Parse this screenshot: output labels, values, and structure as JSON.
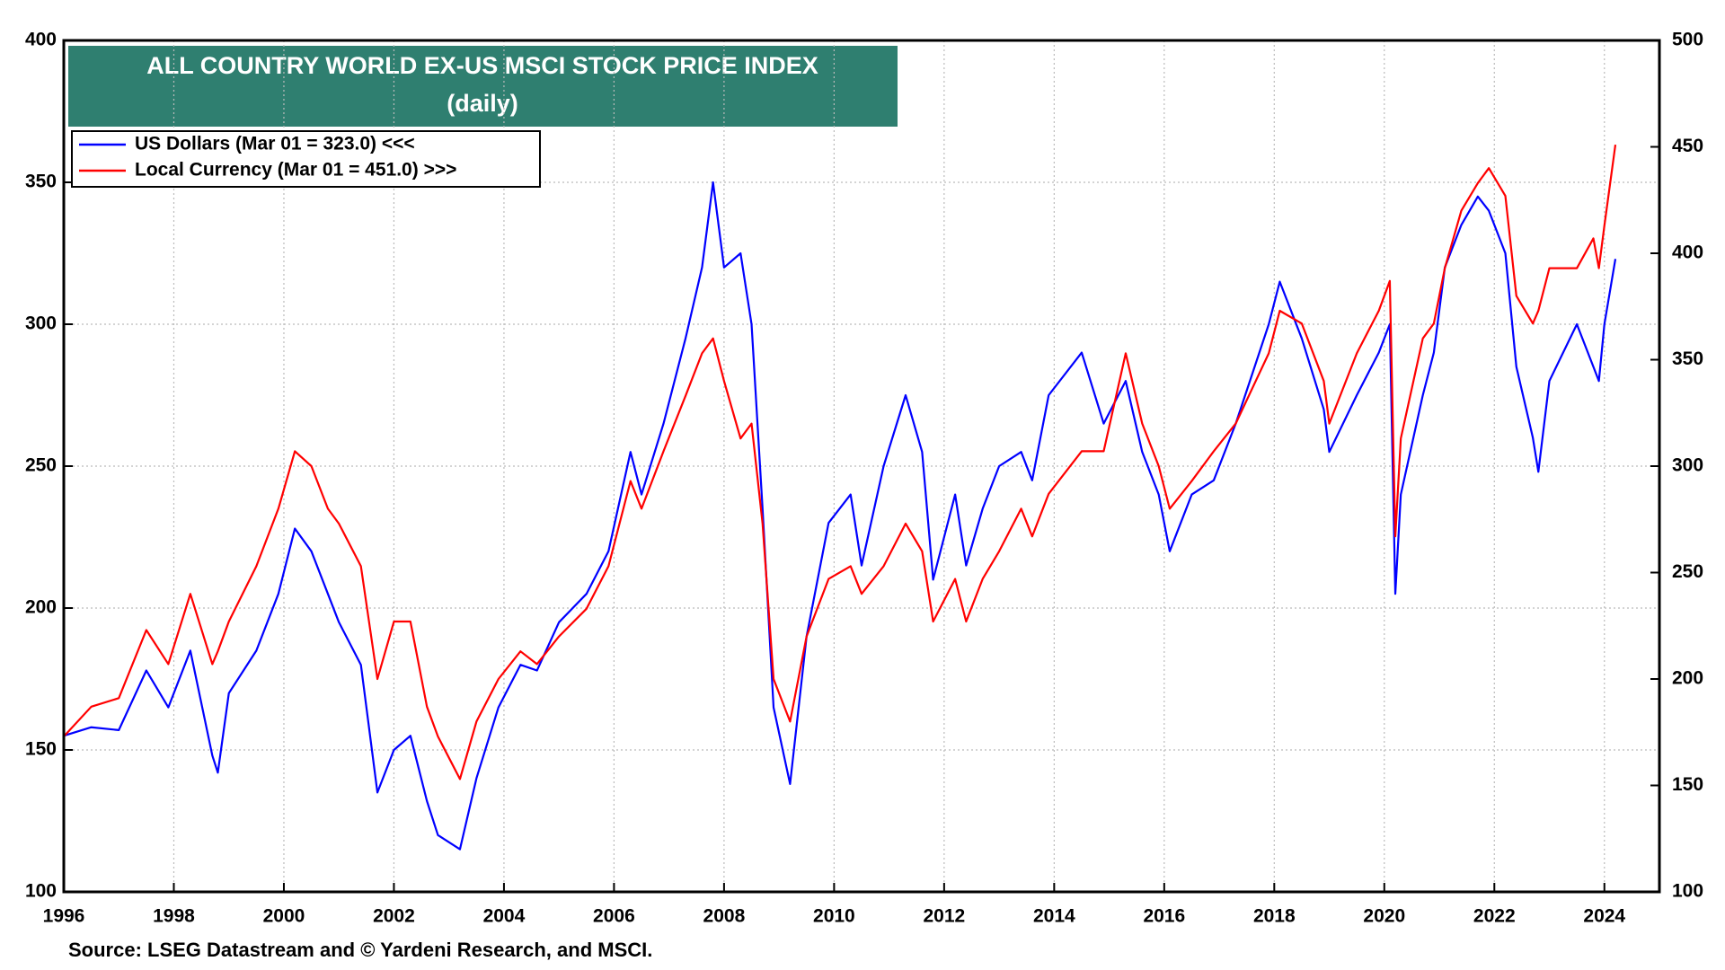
{
  "chart_data": {
    "type": "line",
    "title": "ALL COUNTRY WORLD EX-US MSCI STOCK PRICE INDEX",
    "subtitle": "(daily)",
    "source": "Source: LSEG Datastream and © Yardeni Research, and MSCI.",
    "x": [
      1996.0,
      1996.5,
      1997.0,
      1997.5,
      1997.9,
      1998.3,
      1998.7,
      1998.8,
      1999.0,
      1999.5,
      1999.9,
      2000.2,
      2000.5,
      2000.8,
      2001.0,
      2001.4,
      2001.7,
      2002.0,
      2002.3,
      2002.6,
      2002.8,
      2003.2,
      2003.5,
      2003.9,
      2004.3,
      2004.6,
      2005.0,
      2005.5,
      2005.9,
      2006.3,
      2006.5,
      2006.9,
      2007.3,
      2007.6,
      2007.8,
      2008.0,
      2008.3,
      2008.5,
      2008.7,
      2008.9,
      2009.2,
      2009.5,
      2009.9,
      2010.3,
      2010.5,
      2010.9,
      2011.3,
      2011.6,
      2011.8,
      2012.2,
      2012.4,
      2012.7,
      2013.0,
      2013.4,
      2013.6,
      2013.9,
      2014.5,
      2014.9,
      2015.3,
      2015.6,
      2015.9,
      2016.1,
      2016.5,
      2016.9,
      2017.3,
      2017.9,
      2018.1,
      2018.5,
      2018.9,
      2019.0,
      2019.5,
      2019.9,
      2020.1,
      2020.2,
      2020.3,
      2020.7,
      2020.9,
      2021.1,
      2021.4,
      2021.7,
      2021.9,
      2022.2,
      2022.4,
      2022.7,
      2022.8,
      2023.0,
      2023.5,
      2023.8,
      2023.9,
      2024.0,
      2024.2
    ],
    "series": [
      {
        "name": "US Dollars (Mar 01 = 323.0) <<<",
        "color": "#0000ff",
        "axis": "y",
        "values": [
          155,
          158,
          157,
          178,
          165,
          185,
          148,
          142,
          170,
          185,
          205,
          228,
          220,
          205,
          195,
          180,
          135,
          150,
          155,
          132,
          120,
          115,
          140,
          165,
          180,
          178,
          195,
          205,
          220,
          255,
          240,
          265,
          295,
          320,
          350,
          320,
          325,
          300,
          235,
          165,
          138,
          190,
          230,
          240,
          215,
          250,
          275,
          255,
          210,
          240,
          215,
          235,
          250,
          255,
          245,
          275,
          290,
          265,
          280,
          255,
          240,
          220,
          240,
          245,
          265,
          300,
          315,
          295,
          270,
          255,
          275,
          290,
          300,
          205,
          240,
          275,
          290,
          320,
          335,
          345,
          340,
          325,
          285,
          260,
          248,
          280,
          300,
          285,
          280,
          300,
          323
        ]
      },
      {
        "name": "Local Currency (Mar 01 = 451.0) >>>",
        "color": "#ff0000",
        "axis": "y2",
        "values": [
          173,
          187,
          191,
          223,
          207,
          240,
          207,
          213,
          227,
          253,
          280,
          307,
          300,
          280,
          273,
          253,
          200,
          227,
          227,
          187,
          173,
          153,
          180,
          200,
          213,
          207,
          220,
          233,
          253,
          293,
          280,
          307,
          333,
          353,
          360,
          340,
          313,
          320,
          273,
          200,
          180,
          220,
          247,
          253,
          240,
          253,
          273,
          260,
          227,
          247,
          227,
          247,
          260,
          280,
          267,
          287,
          307,
          307,
          353,
          320,
          300,
          280,
          293,
          307,
          320,
          353,
          373,
          367,
          340,
          320,
          353,
          373,
          387,
          267,
          313,
          360,
          367,
          393,
          420,
          433,
          440,
          427,
          380,
          367,
          373,
          393,
          393,
          407,
          393,
          413,
          451
        ]
      }
    ],
    "xlim": [
      1996,
      2025
    ],
    "xticks": [
      1996,
      1998,
      2000,
      2002,
      2004,
      2006,
      2008,
      2010,
      2012,
      2014,
      2016,
      2018,
      2020,
      2022,
      2024
    ],
    "ylim": [
      100,
      400
    ],
    "yticks": [
      100,
      150,
      200,
      250,
      300,
      350,
      400
    ],
    "y2lim": [
      100,
      500
    ],
    "y2ticks": [
      100,
      150,
      200,
      250,
      300,
      350,
      400,
      450,
      500
    ],
    "grid": true,
    "legend": "upper left"
  }
}
